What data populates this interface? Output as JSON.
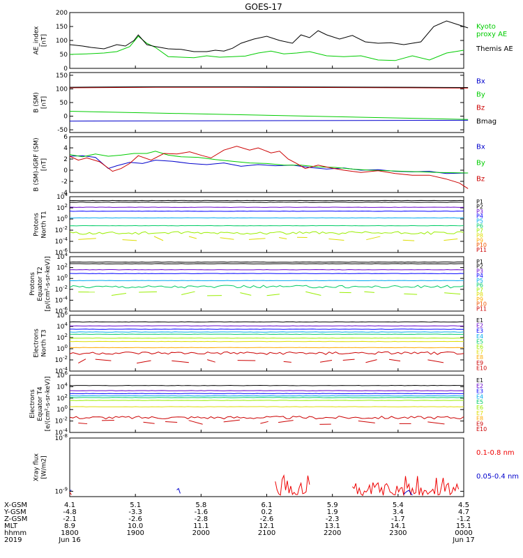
{
  "title": "GOES-17",
  "chart_data": [
    {
      "type": "line",
      "ylabel_lines": [
        "AE_index",
        "[nT]"
      ],
      "ylim": [
        0,
        200
      ],
      "yticks": [
        0,
        50,
        100,
        150,
        200
      ],
      "ytick_labels": [
        "0",
        "50",
        "100",
        "150",
        "200"
      ],
      "log": false,
      "series": [
        {
          "name": "Kyoto",
          "name2": "proxy AE",
          "color": "#00cc00",
          "style": "line",
          "x": [
            0,
            20,
            40,
            55,
            70,
            80,
            90,
            100,
            115,
            130,
            145,
            160,
            175,
            190,
            205,
            220,
            235,
            250,
            265,
            280,
            300,
            320,
            340,
            360,
            380,
            400,
            420,
            440,
            460
          ],
          "y": [
            50,
            52,
            55,
            60,
            78,
            115,
            90,
            75,
            42,
            40,
            38,
            45,
            40,
            42,
            44,
            55,
            62,
            52,
            55,
            60,
            45,
            42,
            45,
            30,
            28,
            45,
            30,
            55,
            65
          ]
        },
        {
          "name": "Themis AE",
          "color": "#000000",
          "style": "line",
          "x": [
            0,
            15,
            25,
            40,
            55,
            65,
            75,
            80,
            90,
            100,
            115,
            130,
            145,
            160,
            170,
            180,
            190,
            200,
            215,
            230,
            245,
            260,
            270,
            280,
            290,
            300,
            315,
            330,
            345,
            360,
            375,
            390,
            410,
            425,
            440,
            455,
            465
          ],
          "y": [
            85,
            80,
            75,
            70,
            85,
            80,
            100,
            120,
            85,
            78,
            70,
            68,
            60,
            60,
            65,
            62,
            72,
            90,
            105,
            115,
            100,
            90,
            120,
            110,
            135,
            120,
            105,
            118,
            95,
            90,
            92,
            85,
            95,
            150,
            170,
            155,
            145
          ]
        }
      ]
    },
    {
      "type": "line",
      "ylabel_lines": [
        "B (SM)",
        "[nT]"
      ],
      "ylim": [
        -60,
        160
      ],
      "yticks": [
        -50,
        0,
        50,
        100,
        150
      ],
      "ytick_labels": [
        "-50",
        "0",
        "50",
        "100",
        "150"
      ],
      "log": false,
      "series": [
        {
          "name": "Bx",
          "color": "#0000cc",
          "style": "line",
          "x": [
            0,
            465
          ],
          "y": [
            -18,
            -15
          ]
        },
        {
          "name": "By",
          "color": "#00cc00",
          "style": "line",
          "x": [
            0,
            465
          ],
          "y": [
            18,
            -12
          ]
        },
        {
          "name": "Bz",
          "color": "#cc0000",
          "style": "line",
          "x": [
            0,
            100,
            200,
            300,
            400,
            465
          ],
          "y": [
            104,
            106,
            106,
            105,
            104,
            103
          ]
        },
        {
          "name": "Bmag",
          "color": "#000000",
          "style": "line",
          "x": [
            0,
            100,
            200,
            300,
            400,
            465
          ],
          "y": [
            106,
            108,
            108,
            107,
            106,
            105
          ]
        }
      ]
    },
    {
      "type": "line",
      "ylabel_lines": [
        "B (SM)-IGRF (SM)",
        "[nT]"
      ],
      "ylim": [
        -4,
        6
      ],
      "yticks": [
        -4,
        -2,
        0,
        2,
        4,
        6
      ],
      "ytick_labels": [
        "-4",
        "-2",
        "0",
        "2",
        "4",
        "6"
      ],
      "log": false,
      "series": [
        {
          "name": "Bx",
          "color": "#0000cc",
          "style": "line",
          "x": [
            0,
            15,
            30,
            45,
            55,
            70,
            85,
            100,
            120,
            140,
            160,
            180,
            200,
            220,
            240,
            260,
            280,
            300,
            320,
            340,
            360,
            380,
            400,
            420,
            440,
            465
          ],
          "y": [
            2.5,
            2.6,
            2.3,
            0.3,
            0.8,
            1.4,
            1.2,
            1.8,
            1.6,
            1.2,
            1.0,
            1.3,
            0.7,
            1.0,
            0.8,
            0.9,
            0.5,
            0.2,
            0.4,
            0.0,
            0.1,
            -0.2,
            -0.3,
            -0.2,
            -0.6,
            -0.5
          ]
        },
        {
          "name": "By",
          "color": "#00cc00",
          "style": "line",
          "x": [
            0,
            15,
            30,
            45,
            60,
            75,
            90,
            100,
            115,
            130,
            150,
            170,
            190,
            210,
            230,
            250,
            270,
            290,
            310,
            330,
            350,
            370,
            390,
            410,
            430,
            465
          ],
          "y": [
            2.8,
            2.4,
            2.9,
            2.5,
            2.7,
            3.0,
            3.0,
            3.4,
            2.7,
            2.4,
            2.3,
            1.9,
            1.6,
            1.3,
            1.2,
            0.9,
            0.9,
            0.6,
            0.5,
            0.2,
            0.0,
            -0.1,
            -0.2,
            -0.3,
            -0.4,
            -0.5
          ]
        },
        {
          "name": "Bz",
          "color": "#cc0000",
          "style": "line",
          "x": [
            0,
            10,
            20,
            35,
            50,
            60,
            70,
            80,
            95,
            110,
            125,
            140,
            155,
            165,
            180,
            195,
            210,
            220,
            235,
            245,
            255,
            265,
            275,
            290,
            305,
            320,
            340,
            360,
            380,
            400,
            420,
            440,
            455,
            465
          ],
          "y": [
            2.5,
            1.8,
            2.2,
            1.5,
            -0.2,
            0.3,
            1.2,
            2.6,
            1.8,
            3.0,
            2.9,
            3.3,
            2.6,
            2.2,
            3.6,
            4.3,
            3.6,
            4.0,
            3.1,
            3.4,
            2.0,
            1.2,
            0.3,
            0.9,
            0.4,
            0.0,
            -0.4,
            -0.1,
            -0.6,
            -0.9,
            -0.9,
            -1.6,
            -2.3,
            -3.3
          ]
        }
      ]
    },
    {
      "type": "line",
      "ylabel_lines": [
        "Protons",
        "North T1"
      ],
      "ylim": [
        -6,
        4
      ],
      "yticks": [
        -6,
        -4,
        -2,
        0,
        2,
        4
      ],
      "ytick_labels": [
        "10^-6",
        "10^-4",
        "10^-2",
        "10^0",
        "10^2",
        "10^4"
      ],
      "log": true,
      "series": [
        {
          "name": "P1",
          "color": "#000000",
          "style": "flat",
          "y": 3.3
        },
        {
          "name": "P2",
          "color": "#000000",
          "style": "flat",
          "y": 3.0
        },
        {
          "name": "P3",
          "color": "#6600cc",
          "style": "flat",
          "y": 2.1
        },
        {
          "name": "P4",
          "color": "#0000ff",
          "style": "flat",
          "y": 1.4
        },
        {
          "name": "P5",
          "color": "#00aaee",
          "style": "flat",
          "y": 0.2
        },
        {
          "name": "P6",
          "color": "#00cc66",
          "style": "flat",
          "y": -1.2
        },
        {
          "name": "P7",
          "color": "#99ee00",
          "style": "noisy",
          "y": -2.5
        },
        {
          "name": "P8",
          "color": "#dddd00",
          "style": "dashes",
          "y": -3.5
        },
        {
          "name": "P9",
          "color": "#ffaa00",
          "style": "none",
          "y": -5.0
        },
        {
          "name": "P10",
          "color": "#ee5500",
          "style": "none",
          "y": -5.5
        },
        {
          "name": "P11",
          "color": "#cc0000",
          "style": "none",
          "y": -6.0
        }
      ]
    },
    {
      "type": "line",
      "ylabel_lines": [
        "Protons",
        "Equator T2",
        "[p/(cm²-s-sr-keV)]"
      ],
      "ylim": [
        -6,
        4
      ],
      "yticks": [
        -6,
        -4,
        -2,
        0,
        2,
        4
      ],
      "ytick_labels": [
        "10^-6",
        "10^-4",
        "10^-2",
        "10^0",
        "10^2",
        "10^4"
      ],
      "log": true,
      "series": [
        {
          "name": "P1",
          "color": "#000000",
          "style": "flat",
          "y": 3.0
        },
        {
          "name": "P2",
          "color": "#000000",
          "style": "flat",
          "y": 2.7
        },
        {
          "name": "P3",
          "color": "#6600cc",
          "style": "flat",
          "y": 1.6
        },
        {
          "name": "P4",
          "color": "#0000ff",
          "style": "flat",
          "y": 0.9
        },
        {
          "name": "P5",
          "color": "#00aaee",
          "style": "flat",
          "y": -0.4
        },
        {
          "name": "P6",
          "color": "#00cc66",
          "style": "noisy",
          "y": -1.5
        },
        {
          "name": "P7",
          "color": "#99ee00",
          "style": "dashes",
          "y": -2.8
        },
        {
          "name": "P8",
          "color": "#dddd00",
          "style": "none",
          "y": -4.0
        },
        {
          "name": "P9",
          "color": "#ffaa00",
          "style": "none",
          "y": -5.0
        },
        {
          "name": "P10",
          "color": "#ee5500",
          "style": "none",
          "y": -5.5
        },
        {
          "name": "P11",
          "color": "#cc0000",
          "style": "none",
          "y": -6.0
        }
      ]
    },
    {
      "type": "line",
      "ylabel_lines": [
        "Electrons",
        "North T3"
      ],
      "ylim": [
        -4,
        6
      ],
      "yticks": [
        -4,
        -2,
        0,
        2,
        4,
        6
      ],
      "ytick_labels": [
        "10^-4",
        "10^-2",
        "10^0",
        "10^2",
        "10^4",
        "10^6"
      ],
      "log": true,
      "series": [
        {
          "name": "E1",
          "color": "#000000",
          "style": "flat",
          "y": 4.8
        },
        {
          "name": "E2",
          "color": "#6600cc",
          "style": "flat",
          "y": 4.1
        },
        {
          "name": "E3",
          "color": "#0000ff",
          "style": "flat",
          "y": 3.5
        },
        {
          "name": "E4",
          "color": "#00aaee",
          "style": "flat",
          "y": 3.0
        },
        {
          "name": "E5",
          "color": "#00cc66",
          "style": "flat",
          "y": 2.6
        },
        {
          "name": "E6",
          "color": "#99ee00",
          "style": "flat",
          "y": 1.9
        },
        {
          "name": "E7",
          "color": "#dddd00",
          "style": "flat",
          "y": 1.3
        },
        {
          "name": "E8",
          "color": "#ffaa00",
          "style": "flat",
          "y": 0.2
        },
        {
          "name": "E9",
          "color": "#cc0000",
          "style": "noisy",
          "y": -0.8
        },
        {
          "name": "E10",
          "color": "#cc0000",
          "style": "dashes",
          "y": -2.2
        }
      ]
    },
    {
      "type": "line",
      "ylabel_lines": [
        "Electrons",
        "Equator T4",
        "[e/(cm²-s-sr-keV)]"
      ],
      "ylim": [
        -4,
        6
      ],
      "yticks": [
        -4,
        -2,
        0,
        2,
        4,
        6
      ],
      "ytick_labels": [
        "10^-4",
        "10^-2",
        "10^0",
        "10^2",
        "10^4",
        "10^6"
      ],
      "log": true,
      "series": [
        {
          "name": "E1",
          "color": "#000000",
          "style": "flat",
          "y": 4.2
        },
        {
          "name": "E2",
          "color": "#6600cc",
          "style": "flat",
          "y": 3.3
        },
        {
          "name": "E3",
          "color": "#0000ff",
          "style": "flat",
          "y": 2.8
        },
        {
          "name": "E4",
          "color": "#00aaee",
          "style": "flat",
          "y": 2.4
        },
        {
          "name": "E5",
          "color": "#00cc66",
          "style": "flat",
          "y": 2.1
        },
        {
          "name": "E6",
          "color": "#99ee00",
          "style": "flat",
          "y": 1.6
        },
        {
          "name": "E7",
          "color": "#dddd00",
          "style": "flat",
          "y": 0.5
        },
        {
          "name": "E8",
          "color": "#ffaa00",
          "style": "none",
          "y": -0.6
        },
        {
          "name": "E9",
          "color": "#cc0000",
          "style": "noisy",
          "y": -1.4
        },
        {
          "name": "E10",
          "color": "#cc0000",
          "style": "dashes",
          "y": -2.2
        }
      ]
    },
    {
      "type": "line",
      "ylabel_lines": [
        "Xray flux",
        "[W/m2]"
      ],
      "ylim": [
        -9.1,
        -8
      ],
      "yticks": [
        -9,
        -8
      ],
      "ytick_labels": [
        "10^-9",
        "10^-8"
      ],
      "log": true,
      "series": [
        {
          "name": "0.1-0.8 nm",
          "color": "#ee0000",
          "style": "spiky",
          "bursts": [
            [
              0,
              2
            ],
            [
              240,
              280
            ],
            [
              330,
              455
            ]
          ],
          "ymax": -8.6
        },
        {
          "name": "0.05-0.4 nm",
          "color": "#0000cc",
          "style": "spiky",
          "bursts": [
            [
              0,
              2
            ],
            [
              125,
              130
            ],
            [
              390,
              400
            ]
          ],
          "ymax": -8.9
        }
      ]
    }
  ],
  "xaxis": {
    "range_minutes": [
      0,
      360
    ],
    "row_labels": [
      "X-GSM",
      "Y-GSM",
      "Z-GSM",
      "MLT",
      "hhmm",
      "2019"
    ],
    "ticks": [
      {
        "values": [
          "4.1",
          "-4.8",
          "-2.1",
          "8.9",
          "1800",
          "Jun 16"
        ]
      },
      {
        "values": [
          "5.1",
          "-3.3",
          "-2.6",
          "10.0",
          "1900",
          ""
        ]
      },
      {
        "values": [
          "5.8",
          "-1.6",
          "-2.8",
          "11.1",
          "2000",
          ""
        ]
      },
      {
        "values": [
          "6.1",
          "0.2",
          "-2.6",
          "12.1",
          "2100",
          ""
        ]
      },
      {
        "values": [
          "5.9",
          "1.9",
          "-2.3",
          "13.1",
          "2200",
          ""
        ]
      },
      {
        "values": [
          "5.4",
          "3.4",
          "-1.7",
          "14.1",
          "2300",
          ""
        ]
      },
      {
        "values": [
          "4.5",
          "4.7",
          "-1.2",
          "15.1",
          "0000",
          "Jun 17"
        ]
      }
    ]
  }
}
